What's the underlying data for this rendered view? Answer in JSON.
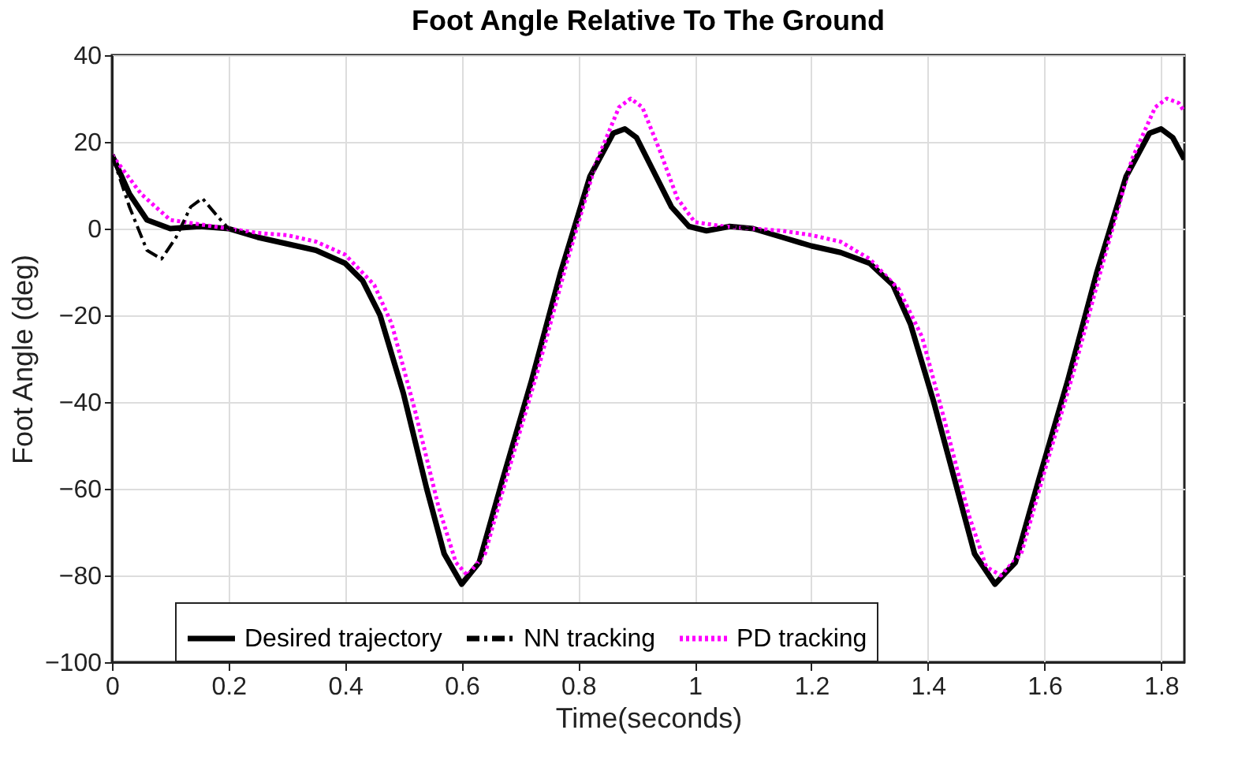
{
  "chart_data": {
    "type": "line",
    "title": "Foot Angle Relative To The Ground",
    "xlabel": "Time(seconds)",
    "ylabel": "Foot Angle (deg)",
    "xlim": [
      0,
      1.84
    ],
    "xticks": [
      0,
      0.2,
      0.4,
      0.6,
      0.8,
      1,
      1.2,
      1.4,
      1.6,
      1.8
    ],
    "ylim": [
      -100,
      40
    ],
    "yticks": [
      -100,
      -80,
      -60,
      -40,
      -20,
      0,
      20,
      40
    ],
    "grid": true,
    "legend": "bottom",
    "series": [
      {
        "name": "Desired trajectory",
        "color": "#000000",
        "line_style": "solid",
        "x": [
          0,
          0.03,
          0.06,
          0.1,
          0.15,
          0.2,
          0.25,
          0.3,
          0.35,
          0.4,
          0.43,
          0.46,
          0.5,
          0.54,
          0.57,
          0.6,
          0.63,
          0.67,
          0.72,
          0.77,
          0.82,
          0.86,
          0.88,
          0.9,
          0.93,
          0.96,
          0.99,
          1.02,
          1.06,
          1.1,
          1.15,
          1.2,
          1.25,
          1.3,
          1.34,
          1.37,
          1.41,
          1.45,
          1.48,
          1.515,
          1.55,
          1.59,
          1.64,
          1.69,
          1.74,
          1.78,
          1.8,
          1.82,
          1.84
        ],
        "values": [
          17,
          8,
          2,
          0,
          0.5,
          0,
          -2,
          -3.5,
          -5,
          -8,
          -12,
          -20,
          -38,
          -60,
          -75,
          -82,
          -77,
          -58,
          -35,
          -10,
          12,
          22,
          23,
          21,
          13,
          5,
          0.5,
          -0.5,
          0.5,
          0,
          -2,
          -4,
          -5.5,
          -8,
          -13,
          -22,
          -40,
          -60,
          -75,
          -82,
          -77,
          -58,
          -35,
          -10,
          12,
          22,
          23,
          21,
          16
        ]
      },
      {
        "name": "NN tracking",
        "color": "#000000",
        "line_style": "dashed",
        "x": [
          0,
          0.03,
          0.06,
          0.085,
          0.11,
          0.135,
          0.155,
          0.18,
          0.2,
          0.25,
          0.3,
          0.35,
          0.4,
          0.43,
          0.46,
          0.5,
          0.54,
          0.57,
          0.6,
          0.63,
          0.67,
          0.72,
          0.77,
          0.82,
          0.86,
          0.88,
          0.9,
          0.93,
          0.96,
          0.99,
          1.02,
          1.06,
          1.1,
          1.15,
          1.2,
          1.25,
          1.3,
          1.34,
          1.37,
          1.41,
          1.45,
          1.48,
          1.515,
          1.55,
          1.59,
          1.64,
          1.69,
          1.74,
          1.78,
          1.8,
          1.82,
          1.84
        ],
        "values": [
          17,
          5,
          -5,
          -7,
          -2,
          5,
          7,
          3,
          0,
          -2,
          -3.5,
          -5,
          -8,
          -12,
          -20,
          -38,
          -60,
          -75,
          -82,
          -77,
          -58,
          -35,
          -10,
          12,
          22,
          23,
          21,
          13,
          5,
          0.5,
          -0.5,
          0.5,
          0,
          -2,
          -4,
          -5.5,
          -8,
          -13,
          -22,
          -40,
          -60,
          -75,
          -82,
          -77,
          -58,
          -35,
          -10,
          12,
          22,
          23,
          21,
          16
        ]
      },
      {
        "name": "PD tracking",
        "color": "#ff00ff",
        "line_style": "dotted",
        "x": [
          0,
          0.05,
          0.1,
          0.15,
          0.2,
          0.25,
          0.3,
          0.35,
          0.4,
          0.45,
          0.48,
          0.52,
          0.56,
          0.59,
          0.61,
          0.64,
          0.68,
          0.73,
          0.78,
          0.83,
          0.87,
          0.89,
          0.91,
          0.94,
          0.97,
          1.0,
          1.05,
          1.1,
          1.15,
          1.2,
          1.25,
          1.3,
          1.35,
          1.39,
          1.43,
          1.47,
          1.5,
          1.525,
          1.56,
          1.6,
          1.65,
          1.7,
          1.75,
          1.79,
          1.81,
          1.83,
          1.84
        ],
        "values": [
          17,
          8,
          2,
          1,
          0,
          -1,
          -1.5,
          -3,
          -6,
          -13,
          -22,
          -42,
          -64,
          -77,
          -80,
          -75,
          -56,
          -33,
          -8,
          15,
          28,
          30,
          28,
          18,
          7,
          1.5,
          0.5,
          0,
          -0.5,
          -1.5,
          -3,
          -7,
          -14,
          -25,
          -45,
          -66,
          -78,
          -80,
          -75,
          -56,
          -33,
          -8,
          16,
          28,
          30,
          29,
          27
        ]
      }
    ]
  }
}
